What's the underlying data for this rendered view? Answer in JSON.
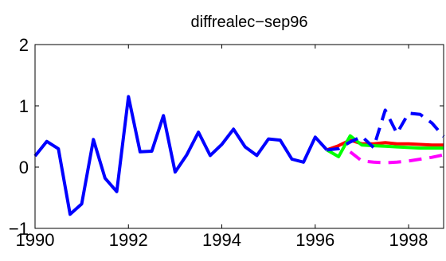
{
  "chart_data": {
    "type": "line",
    "title": "diffrealec−sep96",
    "xlabel": "",
    "ylabel": "",
    "xlim": [
      1990,
      1998.75
    ],
    "ylim": [
      -1,
      2
    ],
    "x_ticks": [
      1990,
      1992,
      1994,
      1996,
      1998
    ],
    "x_tick_labels": [
      "1990",
      "1992",
      "1994",
      "1996",
      "1998"
    ],
    "y_ticks": [
      -1,
      0,
      1,
      2
    ],
    "y_tick_labels": [
      "−1",
      "0",
      "1",
      "2"
    ],
    "grid": false,
    "series": [
      {
        "color": "#0000ff",
        "style": "solid",
        "x": [
          1990,
          1990.25,
          1990.5,
          1990.75,
          1991,
          1991.25,
          1991.5,
          1991.75,
          1992,
          1992.25,
          1992.5,
          1992.75,
          1993,
          1993.25,
          1993.5,
          1993.75,
          1994,
          1994.25,
          1994.5,
          1994.75,
          1995,
          1995.25,
          1995.5,
          1995.75,
          1996,
          1996.25
        ],
        "values": [
          0.18,
          0.42,
          0.3,
          -0.77,
          -0.6,
          0.45,
          -0.18,
          -0.4,
          1.15,
          0.25,
          0.26,
          0.84,
          -0.08,
          0.2,
          0.57,
          0.19,
          0.37,
          0.62,
          0.33,
          0.19,
          0.46,
          0.44,
          0.13,
          0.08,
          0.49,
          0.28
        ]
      },
      {
        "color": "#ff0000",
        "style": "solid",
        "x": [
          1996.25,
          1996.5,
          1996.75,
          1997,
          1997.25,
          1997.5,
          1997.75,
          1998,
          1998.25,
          1998.5,
          1998.75
        ],
        "values": [
          0.28,
          0.35,
          0.44,
          0.38,
          0.38,
          0.4,
          0.38,
          0.38,
          0.37,
          0.36,
          0.36
        ]
      },
      {
        "color": "#00ff00",
        "style": "solid",
        "x": [
          1996.25,
          1996.5,
          1996.75,
          1997,
          1997.25,
          1997.5,
          1997.75,
          1998,
          1998.25,
          1998.5,
          1998.75
        ],
        "values": [
          0.28,
          0.17,
          0.51,
          0.36,
          0.35,
          0.34,
          0.33,
          0.32,
          0.31,
          0.31,
          0.31
        ]
      },
      {
        "color": "#ff00ff",
        "style": "dashed",
        "x": [
          1996.75,
          1997,
          1997.25,
          1997.5,
          1997.75,
          1998,
          1998.25,
          1998.5,
          1998.75
        ],
        "values": [
          0.25,
          0.1,
          0.08,
          0.07,
          0.08,
          0.1,
          0.13,
          0.16,
          0.2
        ]
      },
      {
        "color": "#0000ff",
        "style": "dashed",
        "x": [
          1996.25,
          1996.5,
          1996.75,
          1997,
          1997.25,
          1997.5,
          1997.75,
          1998,
          1998.25,
          1998.5,
          1998.75
        ],
        "values": [
          0.28,
          0.3,
          0.41,
          0.5,
          0.32,
          0.93,
          0.55,
          0.88,
          0.86,
          0.72,
          0.5
        ]
      }
    ]
  }
}
